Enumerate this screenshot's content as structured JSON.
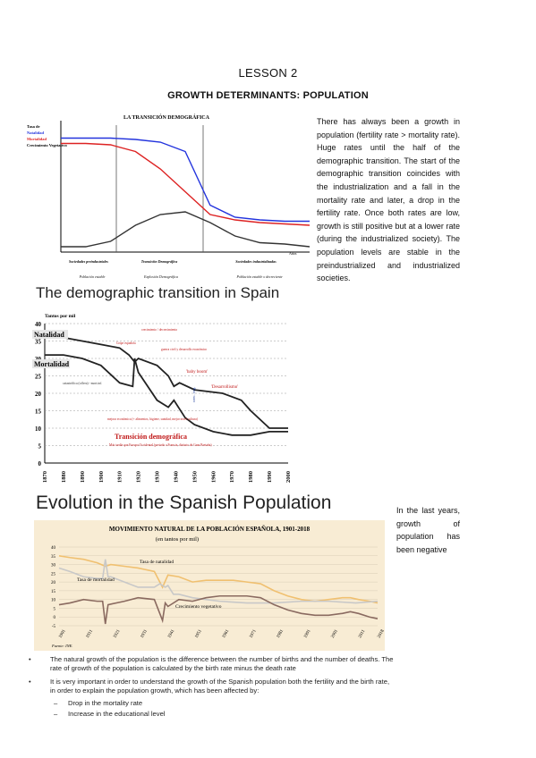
{
  "header": {
    "lesson": "LESSON 2",
    "title": "GROWTH DETERMINANTS: POPULATION"
  },
  "paragraph1": "There has always been a growth in population (fertility rate > mortality rate). Huge rates until the half of the demographic transition. The start of the demographic transition coincides with the industrialization and a fall in the mortality rate and later, a drop in the fertility rate. Once both rates are low, growth is still positive but at a lower rate (during the industrialized society). The population levels are stable in the preindustrialized and industrialized societies.",
  "paragraph2": "In the last years, growth of population has been negative",
  "heading1": "The demographic transition in Spain",
  "heading2": "Evolution in the Spanish Population",
  "bullets": [
    "The natural growth of the population is the difference between the number of births and the number of deaths. The rate of growth of the population is calculated by the birth rate minus the death rate",
    "It is very important in order to understand the growth of the Spanish population both the fertility and the birth rate, in order to explain the population growth, which has been affected by:"
  ],
  "subbullets": [
    "Drop in the mortality rate",
    "Increase in the educational level"
  ],
  "colors": {
    "birth": "#2233dd",
    "death": "#dd2222",
    "growth": "#333333",
    "natalidad": "#f0c070",
    "mortalidad": "#c8c8c8",
    "vegetativo": "#8a6a60"
  },
  "chart_data": [
    {
      "type": "line",
      "title": "LA TRANSICIÓN DEMOGRÁFICA",
      "legend": [
        "Tasa de",
        "Natalidad",
        "Mortalidad",
        "Crecimiento Vegetativo"
      ],
      "xlabel": "Años",
      "phases": [
        "Sociedades preindustriales",
        "Transición Demográfica",
        "Sociedades industrializadas"
      ],
      "phase_notes": [
        "Población estable",
        "Explosión Demográfica",
        "Población estable o decreciente"
      ],
      "x": [
        0,
        10,
        20,
        30,
        40,
        50,
        60,
        70,
        80,
        90,
        100
      ],
      "series": [
        {
          "name": "Natalidad",
          "values": [
            85,
            85,
            85,
            84,
            82,
            75,
            35,
            26,
            24,
            23,
            23
          ]
        },
        {
          "name": "Mortalidad",
          "values": [
            81,
            81,
            80,
            75,
            62,
            45,
            28,
            24,
            22,
            21,
            20
          ]
        },
        {
          "name": "Crecimiento Vegetativo",
          "values": [
            4,
            4,
            8,
            20,
            28,
            30,
            22,
            12,
            7,
            6,
            4
          ]
        }
      ]
    },
    {
      "type": "line",
      "ylabel": "Tantos por mil",
      "ylim": [
        0,
        40
      ],
      "yticks": [
        0,
        5,
        10,
        15,
        20,
        25,
        30,
        35,
        40
      ],
      "xticks": [
        "1870",
        "1880",
        "1890",
        "1900",
        "1910",
        "1920",
        "1930",
        "1940",
        "1950",
        "1960",
        "1970",
        "1980",
        "1990",
        "2000"
      ],
      "labels": {
        "natalidad": "Natalidad",
        "mortalidad": "Mortalidad",
        "transicion": "Transición demográfica",
        "transicion_note": "Más tardía que Europa Occidental (periodo a Francia, distinto de Gran Bretaña)",
        "baby_boom": "'baby boom'",
        "desarrollismo": "'Desarrollismo'",
        "crec_veg": "crec. veg.",
        "catastrofica": "catastrófica (cólera) - mort.inf.",
        "mejora": "mejora económica (+ alimentos, higiene, sanidad, mejor nivel cultura)",
        "guerra": "Gripe española",
        "crisis": "crecimiento / decrecimiento",
        "civil": "guerra civil y desarrollo económico"
      },
      "series": [
        {
          "name": "Natalidad",
          "x": [
            1870,
            1880,
            1890,
            1900,
            1910,
            1915,
            1918,
            1920,
            1930,
            1936,
            1939,
            1942,
            1950,
            1965,
            1975,
            1980,
            1990,
            2000
          ],
          "values": [
            36,
            36,
            35,
            34,
            33,
            31,
            29,
            30,
            28,
            25,
            22,
            23,
            21,
            20,
            18,
            15,
            10,
            10
          ]
        },
        {
          "name": "Mortalidad",
          "x": [
            1870,
            1880,
            1890,
            1900,
            1910,
            1917,
            1918,
            1920,
            1930,
            1936,
            1939,
            1945,
            1950,
            1960,
            1970,
            1980,
            1990,
            2000
          ],
          "values": [
            31,
            31,
            30,
            28,
            23,
            22,
            30,
            26,
            18,
            16,
            18,
            13,
            11,
            9,
            8,
            8,
            9,
            9
          ]
        }
      ]
    },
    {
      "type": "line",
      "title": "MOVIMIENTO NATURAL DE LA POBLACIÓN ESPAÑOLA, 1901-2018",
      "subtitle": "(en tantos por mil)",
      "source": "Fuente: INE.",
      "ylim": [
        -5,
        40
      ],
      "yticks": [
        -5,
        0,
        5,
        10,
        15,
        20,
        25,
        30,
        35,
        40
      ],
      "xticks": [
        "1901",
        "1911",
        "1921",
        "1931",
        "1941",
        "1951",
        "1961",
        "1971",
        "1981",
        "1991",
        "2001",
        "2011",
        "2018"
      ],
      "labels": {
        "natalidad": "Tasa de natalidad",
        "mortalidad": "Tasa de mortalidad",
        "vegetativo": "Crecimiento vegetativo"
      },
      "series": [
        {
          "name": "Tasa de natalidad",
          "x": [
            1901,
            1905,
            1910,
            1915,
            1918,
            1920,
            1925,
            1930,
            1936,
            1939,
            1941,
            1945,
            1950,
            1955,
            1960,
            1965,
            1970,
            1975,
            1980,
            1985,
            1990,
            1995,
            2000,
            2005,
            2008,
            2011,
            2015,
            2018
          ],
          "values": [
            35,
            34,
            33,
            31,
            29,
            30,
            29,
            28,
            26,
            17,
            24,
            23,
            20,
            21,
            21,
            21,
            20,
            19,
            15,
            12,
            10,
            9,
            10,
            11,
            11,
            10,
            9,
            8
          ]
        },
        {
          "name": "Tasa de mortalidad",
          "x": [
            1901,
            1905,
            1910,
            1915,
            1917,
            1918,
            1919,
            1920,
            1925,
            1930,
            1936,
            1938,
            1940,
            1941,
            1943,
            1945,
            1950,
            1955,
            1960,
            1970,
            1980,
            1990,
            2000,
            2010,
            2018
          ],
          "values": [
            28,
            26,
            23,
            22,
            22,
            33,
            23,
            23,
            20,
            17,
            17,
            19,
            17,
            18,
            13,
            13,
            11,
            10,
            9,
            8,
            8,
            9,
            9,
            8,
            9
          ]
        },
        {
          "name": "Crecimiento vegetativo",
          "x": [
            1901,
            1905,
            1910,
            1915,
            1917,
            1918,
            1919,
            1925,
            1930,
            1936,
            1938,
            1939,
            1940,
            1941,
            1945,
            1950,
            1955,
            1960,
            1965,
            1970,
            1975,
            1980,
            1985,
            1990,
            1995,
            2000,
            2005,
            2008,
            2011,
            2015,
            2018
          ],
          "values": [
            7,
            8,
            10,
            9,
            9,
            -4,
            7,
            9,
            11,
            10,
            2,
            -2,
            8,
            6,
            10,
            9,
            11,
            12,
            12,
            12,
            11,
            7,
            4,
            2,
            1,
            1,
            2,
            3,
            2,
            0,
            -1
          ]
        }
      ]
    }
  ]
}
